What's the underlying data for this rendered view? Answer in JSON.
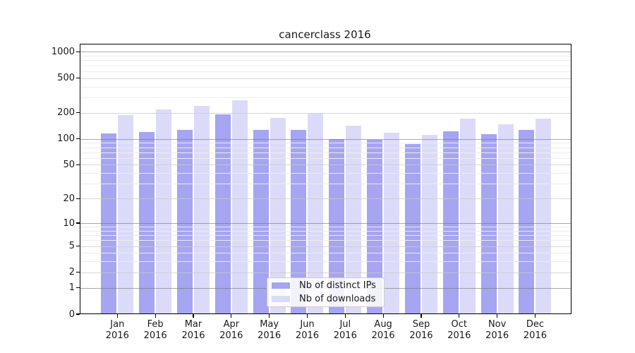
{
  "title": "cancerclass 2016",
  "colors": {
    "bar_ips": "#a5a5f2",
    "bar_downloads": "#dbdbf9",
    "grid_major": "#737373",
    "grid_mid": "#cbcbcb",
    "grid_minor": "#ececec",
    "axis": "#000000"
  },
  "chart_data": {
    "type": "bar",
    "title": "cancerclass 2016",
    "categories": [
      "Jan",
      "Feb",
      "Mar",
      "Apr",
      "May",
      "Jun",
      "Jul",
      "Aug",
      "Sep",
      "Oct",
      "Nov",
      "Dec"
    ],
    "category_year": "2016",
    "series": [
      {
        "name": "Nb of distinct IPs",
        "color": "#a5a5f2",
        "values": [
          115,
          120,
          126,
          192,
          128,
          126,
          100,
          98,
          87,
          123,
          113,
          128
        ]
      },
      {
        "name": "Nb of downloads",
        "color": "#dbdbf9",
        "values": [
          187,
          220,
          240,
          280,
          176,
          197,
          141,
          118,
          111,
          170,
          148,
          171
        ]
      }
    ],
    "xlabel": "",
    "ylabel": "",
    "yscale": "log1p",
    "ylim": [
      0,
      1235
    ],
    "yticks": [
      0,
      1,
      2,
      5,
      10,
      20,
      50,
      100,
      200,
      500,
      1000
    ],
    "minor_gridlines": [
      3,
      4,
      6,
      7,
      8,
      9,
      30,
      40,
      60,
      70,
      80,
      90,
      300,
      400,
      600,
      700,
      800,
      900
    ],
    "grid": true,
    "legend_position": "lower center"
  },
  "legend": {
    "items": [
      {
        "label": "Nb of distinct IPs"
      },
      {
        "label": "Nb of downloads"
      }
    ]
  }
}
